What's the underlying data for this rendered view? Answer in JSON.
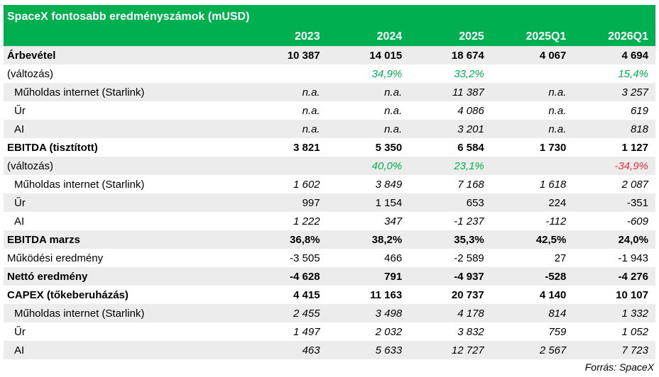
{
  "title": "SpaceX fontosabb eredményszámok (mUSD)",
  "headers": [
    "2023",
    "2024",
    "2025",
    "2025Q1",
    "2026Q1"
  ],
  "rows": [
    {
      "label": "Árbevétel",
      "style": "bold",
      "values": [
        "10 387",
        "14 015",
        "18 674",
        "4 067",
        "4 694"
      ]
    },
    {
      "label": "(változás)",
      "style": "change",
      "values": [
        "",
        "34,9%",
        "33,2%",
        "",
        "15,4%"
      ],
      "tones": [
        "",
        "pos",
        "pos",
        "",
        "pos"
      ]
    },
    {
      "label": "Műholdas internet (Starlink)",
      "style": "sub",
      "values": [
        "n.a.",
        "n.a.",
        "11 387",
        "n.a.",
        "3 257"
      ]
    },
    {
      "label": "Űr",
      "style": "sub",
      "values": [
        "n.a.",
        "n.a.",
        "4 086",
        "n.a.",
        "619"
      ]
    },
    {
      "label": "AI",
      "style": "sub",
      "values": [
        "n.a.",
        "n.a.",
        "3 201",
        "n.a.",
        "818"
      ]
    },
    {
      "label": "EBITDA (tisztított)",
      "style": "bold",
      "values": [
        "3 821",
        "5 350",
        "6 584",
        "1 730",
        "1 127"
      ]
    },
    {
      "label": "(változás)",
      "style": "change",
      "values": [
        "",
        "40,0%",
        "23,1%",
        "",
        "-34,9%"
      ],
      "tones": [
        "",
        "pos",
        "pos",
        "",
        "neg"
      ]
    },
    {
      "label": "Műholdas internet (Starlink)",
      "style": "sub",
      "values": [
        "1 602",
        "3 849",
        "7 168",
        "1 618",
        "2 087"
      ]
    },
    {
      "label": "Űr",
      "style": "sub-plain",
      "values": [
        "997",
        "1 154",
        "653",
        "224",
        "-351"
      ]
    },
    {
      "label": "AI",
      "style": "sub",
      "values": [
        "1 222",
        "347",
        "-1 237",
        "-112",
        "-609"
      ]
    },
    {
      "label": "EBITDA marzs",
      "style": "bold",
      "values": [
        "36,8%",
        "38,2%",
        "35,3%",
        "42,5%",
        "24,0%"
      ]
    },
    {
      "label": "Működési eredmény",
      "style": "plain",
      "values": [
        "-3 505",
        "466",
        "-2 589",
        "27",
        "-1 943"
      ]
    },
    {
      "label": "Nettó eredmény",
      "style": "bold",
      "values": [
        "-4 628",
        "791",
        "-4 937",
        "-528",
        "-4 276"
      ]
    },
    {
      "label": "CAPEX (tőkeberuházás)",
      "style": "bold",
      "values": [
        "4 415",
        "11 163",
        "20 737",
        "4 140",
        "10 107"
      ]
    },
    {
      "label": "Műholdas internet (Starlink)",
      "style": "sub",
      "values": [
        "2 455",
        "3 498",
        "4 178",
        "814",
        "1 332"
      ]
    },
    {
      "label": "Űr",
      "style": "sub",
      "values": [
        "1 497",
        "2 032",
        "3 832",
        "759",
        "1 052"
      ]
    },
    {
      "label": "AI",
      "style": "sub",
      "values": [
        "463",
        "5 633",
        "12 727",
        "2 567",
        "7 723"
      ]
    }
  ],
  "source": "Forrás: SpaceX",
  "colors": {
    "header_green": "#00b050",
    "positive": "#00b050",
    "negative": "#e0303a",
    "stripe": "#ececec"
  }
}
